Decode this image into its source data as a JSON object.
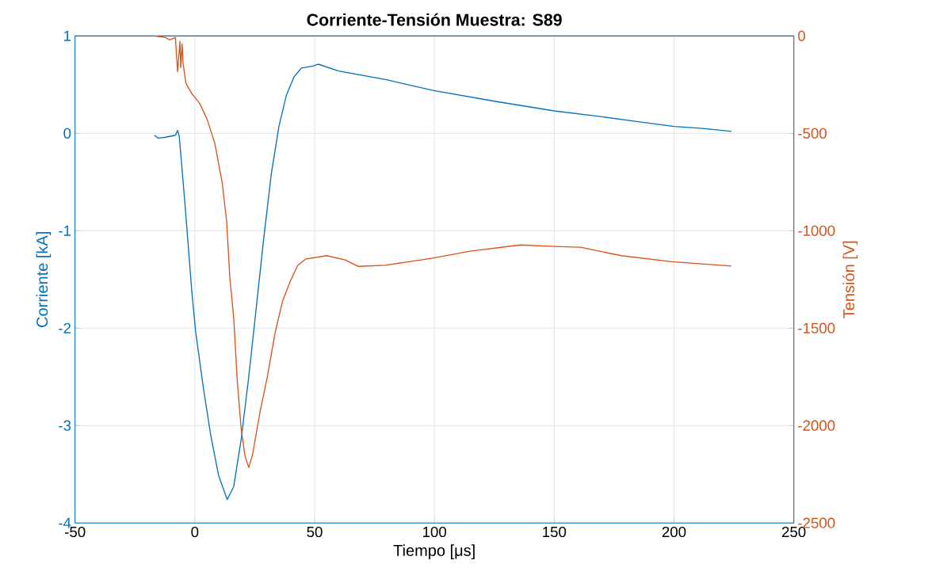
{
  "chart_data": {
    "type": "line",
    "title": "Corriente-Tensión Muestra: S89",
    "xlabel": "Tiempo [μs]",
    "ylabel": "Corriente [kA]",
    "y2label": "Tensión [V]",
    "xlim": [
      -50,
      250
    ],
    "xticks": [
      -50,
      0,
      50,
      100,
      150,
      200,
      250
    ],
    "ylim": [
      -4,
      1
    ],
    "yticks": [
      -4,
      -3,
      -2,
      -1,
      0,
      1
    ],
    "y2lim": [
      -2500,
      0
    ],
    "y2ticks": [
      -2500,
      -2000,
      -1500,
      -1000,
      -500,
      0
    ],
    "grid": true,
    "series": [
      {
        "color": "#0072bd",
        "x": [
          -16.9,
          -15.3,
          -12.2,
          -8.1,
          -7.2,
          -6.5,
          -4.3,
          -1.2,
          0.4,
          3.6,
          6.7,
          9.9,
          13.5,
          16.2,
          19.3,
          22.5,
          25.6,
          28.8,
          31.9,
          35.1,
          38.2,
          41.4,
          44.5,
          49.3,
          51.5,
          60,
          80,
          99.4,
          125,
          150,
          170,
          185,
          200,
          212,
          224
        ],
        "values": [
          -0.02,
          -0.05,
          -0.04,
          -0.02,
          0.03,
          -0.03,
          -0.67,
          -1.64,
          -2.05,
          -2.62,
          -3.11,
          -3.51,
          -3.76,
          -3.63,
          -3.15,
          -2.5,
          -1.8,
          -1.07,
          -0.42,
          0.07,
          0.39,
          0.58,
          0.67,
          0.69,
          0.71,
          0.64,
          0.55,
          0.44,
          0.33,
          0.23,
          0.17,
          0.12,
          0.07,
          0.05,
          0.02
        ]
      },
      {
        "color": "#d95319",
        "axis": "y2",
        "x": [
          -16.9,
          -12.2,
          -10.6,
          -8.1,
          -7.2,
          -6.2,
          -5.9,
          -5.3,
          -4.9,
          -3.7,
          -1.2,
          2.0,
          5.1,
          8.3,
          11.4,
          13.3,
          14.6,
          16.2,
          17.7,
          19.3,
          20.9,
          22.5,
          24.0,
          27.2,
          30.3,
          33.5,
          36.6,
          39.8,
          42.9,
          46.1,
          55,
          62.7,
          68.3,
          79.5,
          99.3,
          114.8,
          135.9,
          150,
          161,
          178,
          199,
          224
        ],
        "values": [
          0,
          -8,
          -20,
          -8,
          -183,
          -28,
          -163,
          -41,
          -142,
          -244,
          -297,
          -346,
          -427,
          -549,
          -752,
          -955,
          -1240,
          -1443,
          -1768,
          -2012,
          -2154,
          -2215,
          -2154,
          -1931,
          -1748,
          -1524,
          -1362,
          -1260,
          -1179,
          -1146,
          -1128,
          -1150,
          -1183,
          -1177,
          -1141,
          -1105,
          -1073,
          -1081,
          -1085,
          -1128,
          -1159,
          -1181
        ]
      }
    ]
  }
}
